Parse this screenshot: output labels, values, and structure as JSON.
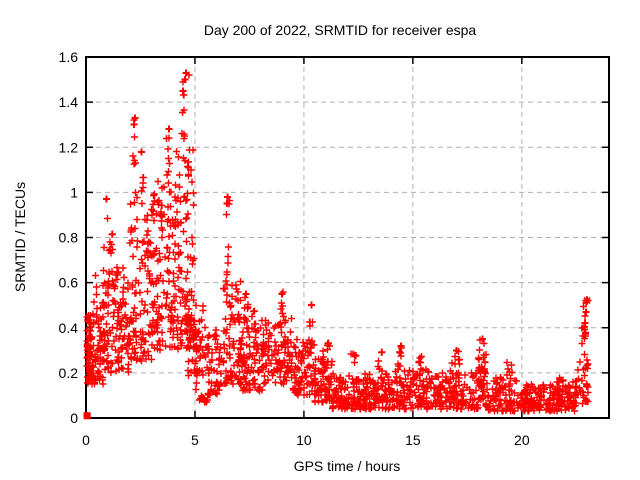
{
  "chart_data": {
    "type": "scatter",
    "title": "Day 200 of 2022, SRMTID for receiver espa",
    "xlabel": "GPS time / hours",
    "ylabel": "SRMTID / TECUs",
    "xlim": [
      0,
      24
    ],
    "ylim": [
      0,
      1.6
    ],
    "xticks": [
      0,
      5,
      10,
      15,
      20
    ],
    "xtick_labels": [
      "0",
      "5",
      "10",
      "15",
      "20"
    ],
    "yticks": [
      0,
      0.2,
      0.4,
      0.6,
      0.8,
      1.0,
      1.2,
      1.4,
      1.6
    ],
    "ytick_labels": [
      "0",
      "0.2",
      "0.4",
      "0.6",
      "0.8",
      "1",
      "1.2",
      "1.4",
      "1.6"
    ],
    "grid": "dashed",
    "grid_color": "#b0b0b0",
    "marker": "plus",
    "marker_color": "#ff0000",
    "border_color": "#000000",
    "origin_square_point": [
      0.05,
      0.01
    ],
    "end_star_point": [
      23.0,
      0.52
    ],
    "notable_points": [
      [
        0.05,
        0.01
      ],
      [
        0.95,
        0.97
      ],
      [
        2.2,
        1.3
      ],
      [
        2.25,
        1.33
      ],
      [
        2.55,
        1.18
      ],
      [
        3.8,
        1.28
      ],
      [
        4.45,
        1.45
      ],
      [
        4.55,
        1.5
      ],
      [
        4.6,
        1.53
      ],
      [
        6.48,
        0.95
      ],
      [
        6.5,
        0.98
      ],
      [
        7.35,
        0.55
      ],
      [
        9.0,
        0.55
      ],
      [
        10.35,
        0.5
      ],
      [
        11.1,
        0.33
      ],
      [
        14.45,
        0.32
      ],
      [
        17.0,
        0.3
      ],
      [
        18.2,
        0.35
      ],
      [
        22.9,
        0.42
      ],
      [
        22.95,
        0.47
      ],
      [
        23.0,
        0.52
      ]
    ],
    "seed": 12,
    "point_clusters": [
      {
        "n": 55,
        "x": [
          0.03,
          0.35
        ],
        "y": [
          0.15,
          0.47
        ],
        "skew": 1.0
      },
      {
        "n": 12,
        "x": [
          0.05,
          0.25
        ],
        "y": [
          0.27,
          0.37
        ],
        "skew": 1.0
      },
      {
        "n": 70,
        "x": [
          0.35,
          1.0
        ],
        "y": [
          0.15,
          0.5
        ],
        "skew": 1.2
      },
      {
        "n": 4,
        "x": [
          0.3,
          0.6
        ],
        "y": [
          0.5,
          0.65
        ],
        "skew": 1.0
      },
      {
        "n": 14,
        "x": [
          0.75,
          1.05
        ],
        "y": [
          0.5,
          0.97
        ],
        "skew": 1.4
      },
      {
        "n": 90,
        "x": [
          1.0,
          2.0
        ],
        "y": [
          0.2,
          0.68
        ],
        "skew": 1.3
      },
      {
        "n": 10,
        "x": [
          1.05,
          1.25
        ],
        "y": [
          0.6,
          0.92
        ],
        "skew": 1.2
      },
      {
        "n": 100,
        "x": [
          2.0,
          3.0
        ],
        "y": [
          0.25,
          0.95
        ],
        "skew": 1.4
      },
      {
        "n": 9,
        "x": [
          2.15,
          2.35
        ],
        "y": [
          0.95,
          1.33
        ],
        "skew": 1.0
      },
      {
        "n": 5,
        "x": [
          2.5,
          2.65
        ],
        "y": [
          1.0,
          1.2
        ],
        "skew": 1.0
      },
      {
        "n": 110,
        "x": [
          3.0,
          4.0
        ],
        "y": [
          0.3,
          1.05
        ],
        "skew": 1.4
      },
      {
        "n": 7,
        "x": [
          3.65,
          3.9
        ],
        "y": [
          1.05,
          1.28
        ],
        "skew": 1.0
      },
      {
        "n": 120,
        "x": [
          4.0,
          4.95
        ],
        "y": [
          0.3,
          1.2
        ],
        "skew": 1.3
      },
      {
        "n": 10,
        "x": [
          4.4,
          4.75
        ],
        "y": [
          1.2,
          1.53
        ],
        "skew": 1.0
      },
      {
        "n": 40,
        "x": [
          4.6,
          5.1
        ],
        "y": [
          0.18,
          0.45
        ],
        "skew": 1.0
      },
      {
        "n": 45,
        "x": [
          5.0,
          5.6
        ],
        "y": [
          0.07,
          0.5
        ],
        "skew": 1.5
      },
      {
        "n": 50,
        "x": [
          5.6,
          6.3
        ],
        "y": [
          0.1,
          0.42
        ],
        "skew": 1.3
      },
      {
        "n": 80,
        "x": [
          6.3,
          7.1
        ],
        "y": [
          0.15,
          0.62
        ],
        "skew": 1.2
      },
      {
        "n": 8,
        "x": [
          6.42,
          6.58
        ],
        "y": [
          0.62,
          0.99
        ],
        "skew": 1.0
      },
      {
        "n": 90,
        "x": [
          7.1,
          8.1
        ],
        "y": [
          0.12,
          0.48
        ],
        "skew": 1.3
      },
      {
        "n": 6,
        "x": [
          7.25,
          7.45
        ],
        "y": [
          0.45,
          0.57
        ],
        "skew": 1.0
      },
      {
        "n": 110,
        "x": [
          8.1,
          9.5
        ],
        "y": [
          0.15,
          0.45
        ],
        "skew": 1.2
      },
      {
        "n": 6,
        "x": [
          8.9,
          9.1
        ],
        "y": [
          0.45,
          0.57
        ],
        "skew": 1.0
      },
      {
        "n": 80,
        "x": [
          9.5,
          10.5
        ],
        "y": [
          0.1,
          0.35
        ],
        "skew": 1.3
      },
      {
        "n": 6,
        "x": [
          10.25,
          10.45
        ],
        "y": [
          0.32,
          0.5
        ],
        "skew": 1.0
      },
      {
        "n": 70,
        "x": [
          10.5,
          11.3
        ],
        "y": [
          0.07,
          0.3
        ],
        "skew": 1.4
      },
      {
        "n": 5,
        "x": [
          11.0,
          11.2
        ],
        "y": [
          0.28,
          0.34
        ],
        "skew": 1.0
      },
      {
        "n": 95,
        "x": [
          11.3,
          12.6
        ],
        "y": [
          0.04,
          0.2
        ],
        "skew": 1.4
      },
      {
        "n": 6,
        "x": [
          12.15,
          12.4
        ],
        "y": [
          0.2,
          0.29
        ],
        "skew": 1.0
      },
      {
        "n": 110,
        "x": [
          12.6,
          14.0
        ],
        "y": [
          0.04,
          0.2
        ],
        "skew": 1.4
      },
      {
        "n": 6,
        "x": [
          13.4,
          13.6
        ],
        "y": [
          0.2,
          0.3
        ],
        "skew": 1.0
      },
      {
        "n": 130,
        "x": [
          14.0,
          16.0
        ],
        "y": [
          0.04,
          0.22
        ],
        "skew": 1.4
      },
      {
        "n": 7,
        "x": [
          14.3,
          14.55
        ],
        "y": [
          0.22,
          0.32
        ],
        "skew": 1.0
      },
      {
        "n": 5,
        "x": [
          15.2,
          15.4
        ],
        "y": [
          0.2,
          0.28
        ],
        "skew": 1.0
      },
      {
        "n": 130,
        "x": [
          16.0,
          18.0
        ],
        "y": [
          0.04,
          0.2
        ],
        "skew": 1.4
      },
      {
        "n": 8,
        "x": [
          16.7,
          17.2
        ],
        "y": [
          0.2,
          0.3
        ],
        "skew": 1.0
      },
      {
        "n": 45,
        "x": [
          18.0,
          18.35
        ],
        "y": [
          0.08,
          0.35
        ],
        "skew": 1.2
      },
      {
        "n": 100,
        "x": [
          18.35,
          20.0
        ],
        "y": [
          0.03,
          0.18
        ],
        "skew": 1.4
      },
      {
        "n": 6,
        "x": [
          19.3,
          19.55
        ],
        "y": [
          0.18,
          0.26
        ],
        "skew": 1.0
      },
      {
        "n": 110,
        "x": [
          20.0,
          21.5
        ],
        "y": [
          0.03,
          0.15
        ],
        "skew": 1.4
      },
      {
        "n": 80,
        "x": [
          21.5,
          22.5
        ],
        "y": [
          0.03,
          0.18
        ],
        "skew": 1.3
      },
      {
        "n": 30,
        "x": [
          22.5,
          23.05
        ],
        "y": [
          0.06,
          0.3
        ],
        "skew": 1.2
      },
      {
        "n": 14,
        "x": [
          22.75,
          23.0
        ],
        "y": [
          0.3,
          0.52
        ],
        "skew": 1.0
      }
    ]
  }
}
